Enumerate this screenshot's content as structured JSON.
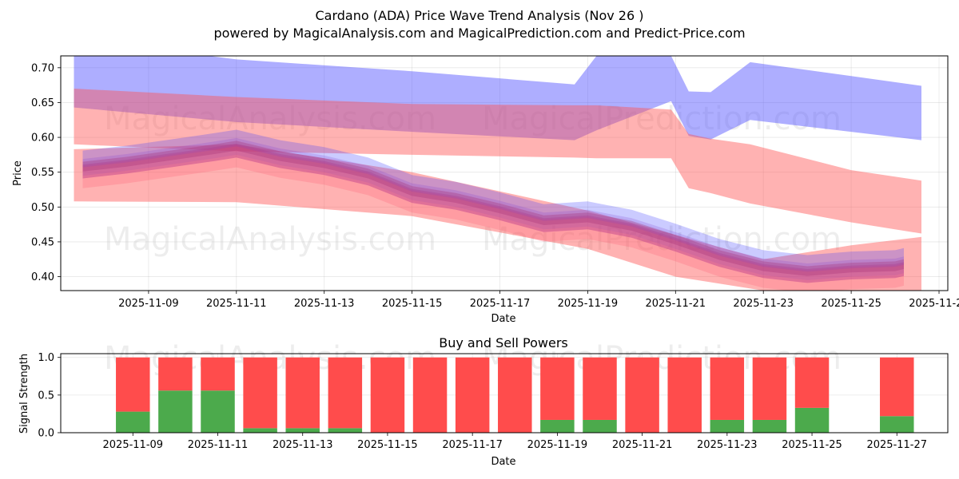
{
  "chart_data": [
    {
      "type": "area",
      "title": "Cardano (ADA) Price Wave Trend Analysis (Nov 26 )",
      "subtitle": "powered by MagicalAnalysis.com and MagicalPrediction.com and Predict-Price.com",
      "xlabel": "Date",
      "ylabel": "Price",
      "xlim": [
        -1.0,
        19.2
      ],
      "ylim": [
        0.38,
        0.717
      ],
      "xticks": [
        "2025-11-09",
        "2025-11-11",
        "2025-11-13",
        "2025-11-15",
        "2025-11-17",
        "2025-11-19",
        "2025-11-21",
        "2025-11-23",
        "2025-11-25",
        "2025-11-27"
      ],
      "xtick_positions": [
        1,
        3,
        5,
        7,
        9,
        11,
        13,
        15,
        17,
        19
      ],
      "yticks": [
        0.4,
        0.45,
        0.5,
        0.55,
        0.6,
        0.65,
        0.7
      ],
      "grid": true,
      "bands": [
        {
          "name": "blue upper channel",
          "color": "#5555ff",
          "opacity": 0.48,
          "x": [
            -0.7,
            3,
            7,
            10.7,
            11.2,
            12.9,
            13.3,
            13.8,
            14.7,
            17,
            18.6
          ],
          "upper": [
            0.742,
            0.712,
            0.695,
            0.676,
            0.717,
            0.717,
            0.666,
            0.665,
            0.708,
            0.688,
            0.674
          ],
          "lower": [
            0.643,
            0.622,
            0.608,
            0.596,
            0.61,
            0.652,
            0.602,
            0.597,
            0.625,
            0.608,
            0.596
          ]
        },
        {
          "name": "red channel (upper)",
          "color": "#ff5555",
          "opacity": 0.45,
          "x": [
            -0.7,
            3,
            7,
            10.7,
            11.2,
            12.9,
            13.3,
            13.8,
            14.7,
            17,
            18.6
          ],
          "upper": [
            0.67,
            0.658,
            0.648,
            0.646,
            0.646,
            0.64,
            0.605,
            0.598,
            0.59,
            0.553,
            0.538
          ],
          "lower": [
            0.59,
            0.58,
            0.575,
            0.571,
            0.57,
            0.57,
            0.527,
            0.52,
            0.505,
            0.478,
            0.462
          ]
        },
        {
          "name": "red channel (lower)",
          "color": "#ff5555",
          "opacity": 0.45,
          "x": [
            -0.7,
            3,
            7,
            11,
            13,
            15,
            17,
            18.6
          ],
          "upper": [
            0.583,
            0.59,
            0.55,
            0.495,
            0.46,
            0.425,
            0.445,
            0.457
          ],
          "lower": [
            0.508,
            0.507,
            0.487,
            0.44,
            0.4,
            0.38,
            0.38,
            0.38
          ]
        }
      ],
      "wave_x": [
        -0.5,
        0.5,
        1.5,
        2.5,
        3.0,
        4.0,
        5.0,
        6.0,
        7.0,
        8.0,
        9.0,
        10.0,
        11.0,
        12.0,
        13.0,
        14.0,
        15.0,
        16.0,
        17.0,
        18.0,
        18.2
      ],
      "wave_mid": [
        0.555,
        0.562,
        0.571,
        0.58,
        0.585,
        0.57,
        0.56,
        0.545,
        0.52,
        0.51,
        0.495,
        0.478,
        0.482,
        0.47,
        0.45,
        0.428,
        0.412,
        0.405,
        0.41,
        0.412,
        0.415
      ],
      "wave_waves": [
        {
          "color": "#3344ff",
          "offset": 0.008,
          "half_width": 0.018,
          "opacity": 0.14
        },
        {
          "color": "#cc3366",
          "offset": -0.004,
          "half_width": 0.01,
          "opacity": 0.3
        },
        {
          "color": "#8844cc",
          "offset": 0.0,
          "half_width": 0.014,
          "opacity": 0.22
        },
        {
          "color": "#ff4466",
          "offset": -0.012,
          "half_width": 0.016,
          "opacity": 0.2
        },
        {
          "color": "#5544ff",
          "offset": 0.014,
          "half_width": 0.012,
          "opacity": 0.16
        },
        {
          "color": "#aa3377",
          "offset": 0.003,
          "half_width": 0.007,
          "opacity": 0.35
        }
      ],
      "watermarks": [
        "MagicalAnalysis.com",
        "MagicalPrediction.com",
        "MagicalAnalysis.com",
        "MagicalPrediction.com"
      ]
    },
    {
      "type": "bar",
      "stacked": true,
      "title": "Buy and Sell Powers",
      "xlabel": "Date",
      "ylabel": "Signal Strength",
      "xlim": [
        -0.7,
        20.2
      ],
      "ylim": [
        0,
        1.05
      ],
      "yticks": [
        "0.0",
        "0.5",
        "1.0"
      ],
      "xticks": [
        "2025-11-09",
        "2025-11-11",
        "2025-11-13",
        "2025-11-15",
        "2025-11-17",
        "2025-11-19",
        "2025-11-21",
        "2025-11-23",
        "2025-11-25",
        "2025-11-27"
      ],
      "xtick_positions": [
        1,
        3,
        5,
        7,
        9,
        11,
        13,
        15,
        17,
        19
      ],
      "x": [
        1,
        2,
        3,
        4,
        5,
        6,
        7,
        8,
        9,
        10,
        11,
        12,
        13,
        14,
        15,
        16,
        17,
        19
      ],
      "series": [
        {
          "name": "Buy",
          "color": "#4caa4c",
          "values": [
            0.28,
            0.56,
            0.56,
            0.06,
            0.06,
            0.06,
            0.0,
            0.0,
            0.0,
            0.0,
            0.17,
            0.17,
            0.0,
            0.0,
            0.17,
            0.17,
            0.33,
            0.22
          ]
        },
        {
          "name": "Sell",
          "color": "#ff4c4c",
          "values": [
            0.72,
            0.44,
            0.44,
            0.94,
            0.94,
            0.94,
            1.0,
            1.0,
            1.0,
            1.0,
            0.83,
            0.83,
            1.0,
            1.0,
            0.83,
            0.83,
            0.67,
            0.78
          ]
        }
      ],
      "grid": true,
      "watermarks": [
        "MagicalAnalysis.com",
        "MagicalPrediction.com"
      ]
    }
  ]
}
